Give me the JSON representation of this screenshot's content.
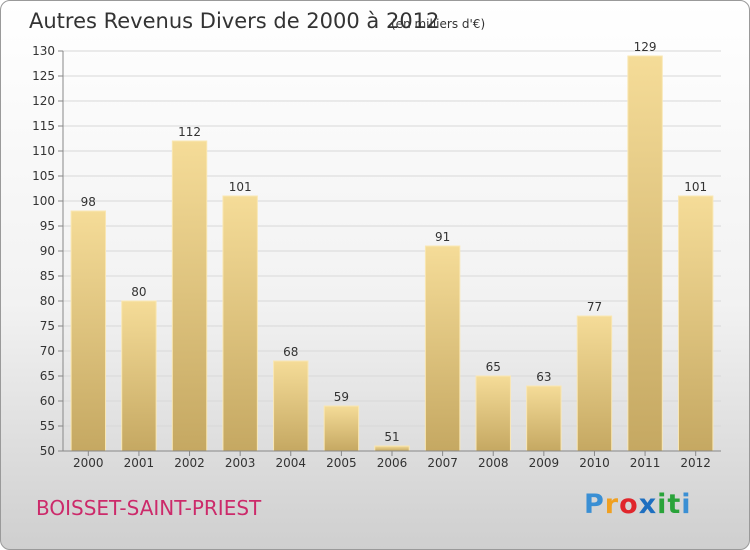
{
  "title": "Autres Revenus Divers de 2000 à 2012",
  "subtitle": "(en milliers d'€)",
  "commune": "BOISSET-SAINT-PRIEST",
  "brand": {
    "letters": [
      "P",
      "r",
      "o",
      "x",
      "i",
      "t",
      "i"
    ],
    "colors": [
      "#3a8fd4",
      "#f0a020",
      "#e0262c",
      "#1e6fc0",
      "#2aa33a",
      "#2aa33a",
      "#3a8fd4"
    ]
  },
  "colors": {
    "bar_light": "#f5dc98",
    "bar_dark": "#c5a862",
    "bar_top": "#f9e7b4",
    "grid": "#d8d8d8",
    "axis": "#888888"
  },
  "chart_data": {
    "type": "bar",
    "categories": [
      "2000",
      "2001",
      "2002",
      "2003",
      "2004",
      "2005",
      "2006",
      "2007",
      "2008",
      "2009",
      "2010",
      "2011",
      "2012"
    ],
    "values": [
      98,
      80,
      112,
      101,
      68,
      59,
      51,
      91,
      65,
      63,
      77,
      129,
      101
    ],
    "data_labels": [
      "98",
      "80",
      "112",
      "101",
      "68",
      "59",
      "51",
      "91",
      "65",
      "63",
      "77",
      "129",
      "101"
    ],
    "ylim": [
      50,
      130
    ],
    "yticks": [
      "50",
      "55",
      "60",
      "65",
      "70",
      "75",
      "80",
      "85",
      "90",
      "95",
      "100",
      "105",
      "110",
      "115",
      "120",
      "125",
      "130"
    ],
    "grid": true
  }
}
